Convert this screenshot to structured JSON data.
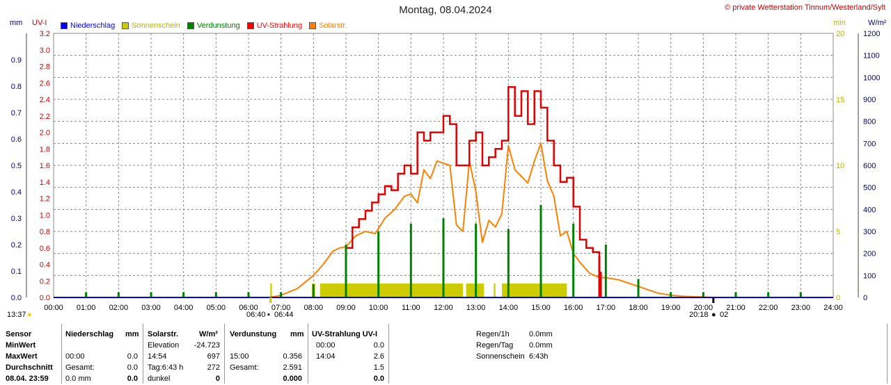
{
  "title": "Montag, 08.04.2024",
  "copyright": "© private Wetterstation Tinnum/Westerland/Sylt",
  "axis_units": {
    "left_outer": "mm",
    "left_inner": "UV-I",
    "right_inner": "min",
    "right_outer": "W/m²"
  },
  "legend": [
    {
      "label": "Niederschlag",
      "color": "#0000ff"
    },
    {
      "label": "Sonnenschein",
      "color": "#cccc00"
    },
    {
      "label": "Verdunstung",
      "color": "#008000"
    },
    {
      "label": "UV-Strahlung",
      "color": "#ff0000"
    },
    {
      "label": "Solarstr.",
      "color": "#ff8000"
    }
  ],
  "chart_data": {
    "type": "line",
    "x_ticks": [
      "00:00",
      "01:00",
      "02:00",
      "03:00",
      "04:00",
      "05:00",
      "06:00",
      "07:00",
      "08:00",
      "09:00",
      "10:00",
      "11:00",
      "12:00",
      "13:00",
      "14:00",
      "15:00",
      "16:00",
      "17:00",
      "18:00",
      "19:00",
      "20:00",
      "21:00",
      "22:00",
      "23:00",
      "24:00"
    ],
    "axes": {
      "mm": {
        "ticks": [
          "0.0",
          "0.1",
          "0.2",
          "0.3",
          "0.4",
          "0.5",
          "0.6",
          "0.7",
          "0.8",
          "0.9"
        ],
        "ylim": [
          0,
          1.0
        ]
      },
      "uv": {
        "ticks": [
          "0.0",
          "0.2",
          "0.4",
          "0.6",
          "0.8",
          "1.0",
          "1.2",
          "1.4",
          "1.6",
          "1.8",
          "2.0",
          "2.2",
          "2.4",
          "2.6",
          "2.8",
          "3.0",
          "3.2"
        ],
        "ylim": [
          0,
          3.2
        ]
      },
      "min": {
        "ticks": [
          "0",
          "5",
          "10",
          "15",
          "20"
        ],
        "ylim": [
          0,
          20
        ]
      },
      "wm2": {
        "ticks": [
          "0",
          "100",
          "200",
          "300",
          "400",
          "500",
          "600",
          "700",
          "800",
          "900",
          "1000",
          "1100",
          "1200"
        ],
        "ylim": [
          0,
          1200
        ]
      }
    },
    "series": [
      {
        "name": "UV-Strahlung",
        "color": "#e00000",
        "axis": "uv",
        "x": [
          9.0,
          9.2,
          9.4,
          9.6,
          9.8,
          10.0,
          10.2,
          10.4,
          10.6,
          10.8,
          11.0,
          11.2,
          11.4,
          11.6,
          11.8,
          12.0,
          12.2,
          12.4,
          12.6,
          12.8,
          13.0,
          13.2,
          13.4,
          13.6,
          13.8,
          14.0,
          14.2,
          14.4,
          14.6,
          14.8,
          15.0,
          15.2,
          15.4,
          15.6,
          15.8,
          16.0,
          16.2,
          16.4,
          16.6,
          16.8,
          16.85
        ],
        "y": [
          0.6,
          0.85,
          0.95,
          1.05,
          1.15,
          1.25,
          1.35,
          1.3,
          1.5,
          1.6,
          1.5,
          2.0,
          1.9,
          2.0,
          2.0,
          2.2,
          2.1,
          1.6,
          1.6,
          1.9,
          2.0,
          1.6,
          1.7,
          1.8,
          1.9,
          2.55,
          2.2,
          2.5,
          2.1,
          2.5,
          2.3,
          1.9,
          1.6,
          1.4,
          1.45,
          1.1,
          0.7,
          0.6,
          0.55,
          0.3,
          0.0
        ]
      },
      {
        "name": "Solarstr.",
        "color": "#ff8000",
        "axis": "wm2",
        "x": [
          6.67,
          7.0,
          7.5,
          8.0,
          8.3,
          8.6,
          8.8,
          9.0,
          9.3,
          9.6,
          9.9,
          10.2,
          10.5,
          10.8,
          11.0,
          11.2,
          11.4,
          11.6,
          11.8,
          12.0,
          12.2,
          12.4,
          12.6,
          12.8,
          13.0,
          13.2,
          13.4,
          13.6,
          13.8,
          14.0,
          14.2,
          14.4,
          14.6,
          14.8,
          15.0,
          15.2,
          15.4,
          15.6,
          15.8,
          16.0,
          16.2,
          16.5,
          16.8,
          17.0,
          17.4,
          17.8,
          18.2,
          18.6,
          19.0,
          19.4,
          19.8,
          20.0,
          20.3
        ],
        "y": [
          0,
          10,
          40,
          100,
          150,
          210,
          225,
          230,
          280,
          300,
          290,
          360,
          400,
          460,
          470,
          430,
          580,
          540,
          620,
          610,
          600,
          330,
          300,
          620,
          480,
          250,
          350,
          320,
          380,
          690,
          580,
          550,
          520,
          620,
          700,
          530,
          460,
          280,
          300,
          200,
          160,
          110,
          90,
          90,
          80,
          60,
          40,
          20,
          10,
          5,
          3,
          2,
          0
        ]
      },
      {
        "name": "Sonnenschein",
        "color": "#cccc00",
        "axis": "min",
        "type": "bars",
        "blocks": [
          [
            6.67,
            6.72
          ],
          [
            7.95,
            8.05
          ],
          [
            8.2,
            12.6
          ],
          [
            12.7,
            13.25
          ],
          [
            13.55,
            13.6
          ],
          [
            13.8,
            15.8
          ]
        ],
        "value": 1
      },
      {
        "name": "Verdunstung",
        "color": "#008000",
        "axis": "mm",
        "type": "spikes",
        "x": [
          1,
          2,
          3,
          4,
          5,
          6,
          7,
          8,
          9,
          10,
          11,
          12,
          13,
          14,
          15,
          16,
          17,
          18,
          19,
          20,
          21,
          22,
          23
        ],
        "y": [
          0.02,
          0.02,
          0.02,
          0.02,
          0.02,
          0.02,
          0.02,
          0.05,
          0.2,
          0.25,
          0.28,
          0.3,
          0.28,
          0.26,
          0.35,
          0.28,
          0.2,
          0.07,
          0.02,
          0.02,
          0.02,
          0.02,
          0.02
        ]
      }
    ]
  },
  "time_bar": {
    "current_time": "13:37",
    "sunrise": "06:40",
    "sunrise2": "06:44",
    "sunset": "20:18",
    "sunset2": "02"
  },
  "stats": {
    "headers": {
      "sensor": "Sensor",
      "niederschlag": "Niederschlag",
      "mm1": "mm",
      "solar": "Solarstr.",
      "wm2": "W/m²",
      "verdunstung": "Verdunstung",
      "mm2": "mm",
      "uv": "UV-Strahlung UV-I"
    },
    "rows": [
      {
        "label": "MinWert",
        "n_time": "",
        "n_val": "",
        "s_label": "Elevation",
        "s_val": "-24.723",
        "v_time": "",
        "v_val": "",
        "u_time": "00:00",
        "u_val": "0.0"
      },
      {
        "label": "MaxWert",
        "n_time": "00:00",
        "n_val": "0.0",
        "s_label": "14:54",
        "s_val": "697",
        "v_time": "15:00",
        "v_val": "0.356",
        "u_time": "14:04",
        "u_val": "2.6"
      },
      {
        "label": "Durchschnitt",
        "n_time": "Gesamt:",
        "n_val": "0.0",
        "s_label": "Tag:6:43 h",
        "s_val": "272",
        "v_time": "Gesamt:",
        "v_val": "2.591",
        "u_time": "",
        "u_val": "1.5"
      },
      {
        "label": "08.04. 23:59",
        "n_time": "0.0 mm",
        "n_val": "0.0",
        "s_label": "dunkel",
        "s_val": "0",
        "v_time": "",
        "v_val": "0.000",
        "u_time": "",
        "u_val": "0.0"
      }
    ],
    "side": [
      {
        "label": "Regen/1h",
        "value": "0.0mm"
      },
      {
        "label": "Regen/Tag",
        "value": "0.0mm"
      },
      {
        "label": "Sonnenschein",
        "value": "6:43h"
      }
    ]
  }
}
